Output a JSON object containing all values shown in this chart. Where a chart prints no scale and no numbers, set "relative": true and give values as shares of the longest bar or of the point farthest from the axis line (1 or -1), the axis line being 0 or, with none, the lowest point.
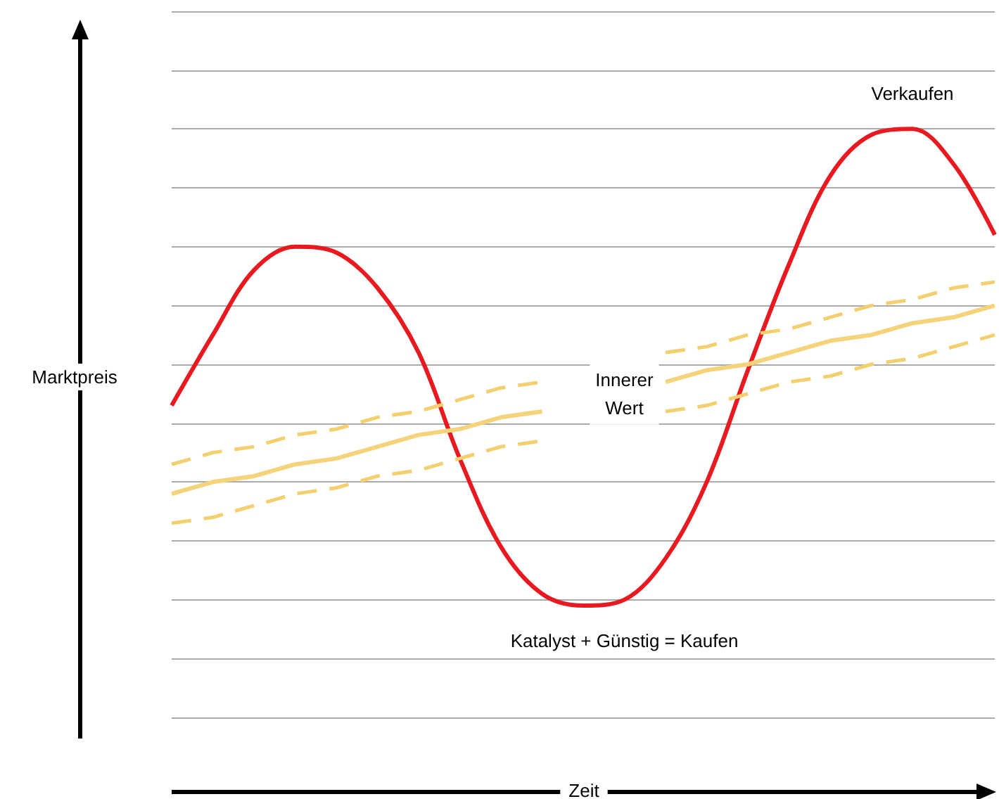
{
  "chart_data": {
    "type": "line",
    "relative": true,
    "xlabel": "Zeit",
    "ylabel": "Marktpreis",
    "grid": "y",
    "marker": "none",
    "categories": [
      null,
      null,
      null,
      null,
      null,
      null,
      null,
      null,
      null,
      null,
      null,
      null,
      null,
      null,
      null,
      null,
      null,
      null,
      null,
      null,
      null
    ],
    "series": [
      {
        "color": "#e8191f",
        "line_style": "solid",
        "values": [
          0.53,
          0.65,
          0.76,
          0.8,
          0.79,
          0.73,
          0.62,
          0.44,
          0.29,
          0.21,
          0.19,
          0.2,
          0.27,
          0.4,
          0.59,
          0.77,
          0.92,
          0.99,
          1.0,
          0.94,
          0.82
        ]
      },
      {
        "color": "#f5d37a",
        "line_style": "solid",
        "values": [
          0.38,
          0.4,
          0.41,
          0.43,
          0.44,
          0.46,
          0.48,
          0.49,
          0.51,
          0.52,
          null,
          null,
          0.57,
          0.59,
          0.6,
          0.62,
          0.64,
          0.65,
          0.67,
          0.68,
          0.7
        ]
      },
      {
        "color": "#f3cf6e",
        "line_style": "dashed",
        "values": [
          0.43,
          0.45,
          0.46,
          0.48,
          0.49,
          0.51,
          0.52,
          0.54,
          0.56,
          0.57,
          null,
          null,
          0.62,
          0.63,
          0.65,
          0.66,
          0.68,
          0.7,
          0.71,
          0.73,
          0.74
        ]
      },
      {
        "color": "#f3cf6e",
        "line_style": "dashed",
        "values": [
          0.33,
          0.34,
          0.36,
          0.38,
          0.39,
          0.41,
          0.42,
          0.44,
          0.46,
          0.47,
          null,
          null,
          0.52,
          0.53,
          0.55,
          0.57,
          0.58,
          0.6,
          0.61,
          0.63,
          0.65
        ]
      }
    ],
    "annotations": [
      "Verkaufen",
      "Innerer\nWert",
      "Katalyst + Günstig = Kaufen"
    ]
  }
}
